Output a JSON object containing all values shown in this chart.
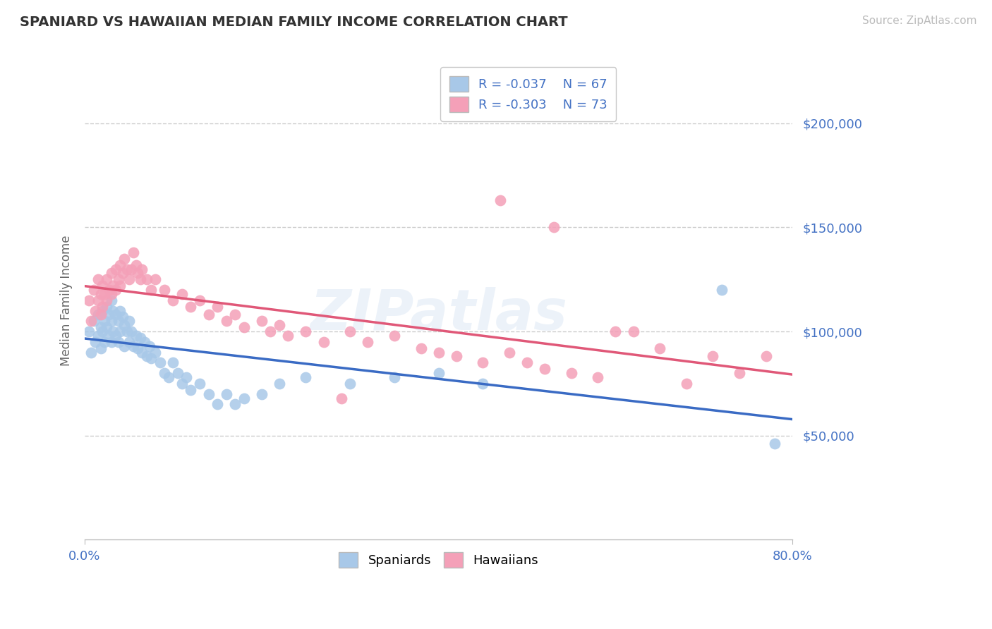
{
  "title": "SPANIARD VS HAWAIIAN MEDIAN FAMILY INCOME CORRELATION CHART",
  "source_text": "Source: ZipAtlas.com",
  "ylabel": "Median Family Income",
  "xlim": [
    0.0,
    0.8
  ],
  "ylim": [
    0,
    230000
  ],
  "background_color": "#ffffff",
  "grid_color": "#cccccc",
  "spaniards_color": "#a8c8e8",
  "hawaiians_color": "#f4a0b8",
  "spaniards_line_color": "#3a6bc4",
  "hawaiians_line_color": "#e05878",
  "legend_R_spaniards": "R = -0.037",
  "legend_N_spaniards": "N = 67",
  "legend_R_hawaiians": "R = -0.303",
  "legend_N_hawaiians": "N = 73",
  "title_color": "#333333",
  "axis_color": "#4472c4",
  "spaniards_x": [
    0.005,
    0.007,
    0.01,
    0.012,
    0.015,
    0.015,
    0.018,
    0.018,
    0.02,
    0.02,
    0.022,
    0.022,
    0.025,
    0.025,
    0.027,
    0.027,
    0.03,
    0.03,
    0.03,
    0.032,
    0.032,
    0.035,
    0.035,
    0.038,
    0.038,
    0.04,
    0.04,
    0.043,
    0.045,
    0.045,
    0.048,
    0.05,
    0.05,
    0.053,
    0.055,
    0.058,
    0.06,
    0.063,
    0.065,
    0.068,
    0.07,
    0.073,
    0.075,
    0.08,
    0.085,
    0.09,
    0.095,
    0.1,
    0.105,
    0.11,
    0.115,
    0.12,
    0.13,
    0.14,
    0.15,
    0.16,
    0.17,
    0.18,
    0.2,
    0.22,
    0.25,
    0.3,
    0.35,
    0.4,
    0.45,
    0.72,
    0.78
  ],
  "spaniards_y": [
    100000,
    90000,
    105000,
    95000,
    108000,
    98000,
    102000,
    92000,
    110000,
    100000,
    105000,
    95000,
    112000,
    102000,
    108000,
    98000,
    115000,
    105000,
    95000,
    110000,
    100000,
    108000,
    98000,
    105000,
    95000,
    110000,
    100000,
    107000,
    103000,
    93000,
    100000,
    105000,
    95000,
    100000,
    93000,
    98000,
    92000,
    97000,
    90000,
    95000,
    88000,
    93000,
    87000,
    90000,
    85000,
    80000,
    78000,
    85000,
    80000,
    75000,
    78000,
    72000,
    75000,
    70000,
    65000,
    70000,
    65000,
    68000,
    70000,
    75000,
    78000,
    75000,
    78000,
    80000,
    75000,
    120000,
    46000
  ],
  "hawaiians_x": [
    0.005,
    0.007,
    0.01,
    0.012,
    0.015,
    0.015,
    0.018,
    0.018,
    0.02,
    0.02,
    0.022,
    0.025,
    0.025,
    0.028,
    0.03,
    0.03,
    0.032,
    0.035,
    0.035,
    0.038,
    0.04,
    0.04,
    0.043,
    0.045,
    0.048,
    0.05,
    0.053,
    0.055,
    0.058,
    0.06,
    0.063,
    0.065,
    0.07,
    0.075,
    0.08,
    0.09,
    0.1,
    0.11,
    0.12,
    0.13,
    0.14,
    0.15,
    0.16,
    0.17,
    0.18,
    0.2,
    0.21,
    0.22,
    0.23,
    0.25,
    0.27,
    0.3,
    0.32,
    0.35,
    0.38,
    0.4,
    0.42,
    0.45,
    0.48,
    0.5,
    0.52,
    0.55,
    0.58,
    0.6,
    0.62,
    0.65,
    0.68,
    0.71,
    0.74,
    0.77,
    0.53,
    0.47,
    0.29
  ],
  "hawaiians_y": [
    115000,
    105000,
    120000,
    110000,
    125000,
    115000,
    118000,
    108000,
    122000,
    112000,
    118000,
    125000,
    115000,
    120000,
    128000,
    118000,
    122000,
    130000,
    120000,
    125000,
    132000,
    122000,
    128000,
    135000,
    130000,
    125000,
    130000,
    138000,
    132000,
    128000,
    125000,
    130000,
    125000,
    120000,
    125000,
    120000,
    115000,
    118000,
    112000,
    115000,
    108000,
    112000,
    105000,
    108000,
    102000,
    105000,
    100000,
    103000,
    98000,
    100000,
    95000,
    100000,
    95000,
    98000,
    92000,
    90000,
    88000,
    85000,
    90000,
    85000,
    82000,
    80000,
    78000,
    100000,
    100000,
    92000,
    75000,
    88000,
    80000,
    88000,
    150000,
    163000,
    68000
  ]
}
